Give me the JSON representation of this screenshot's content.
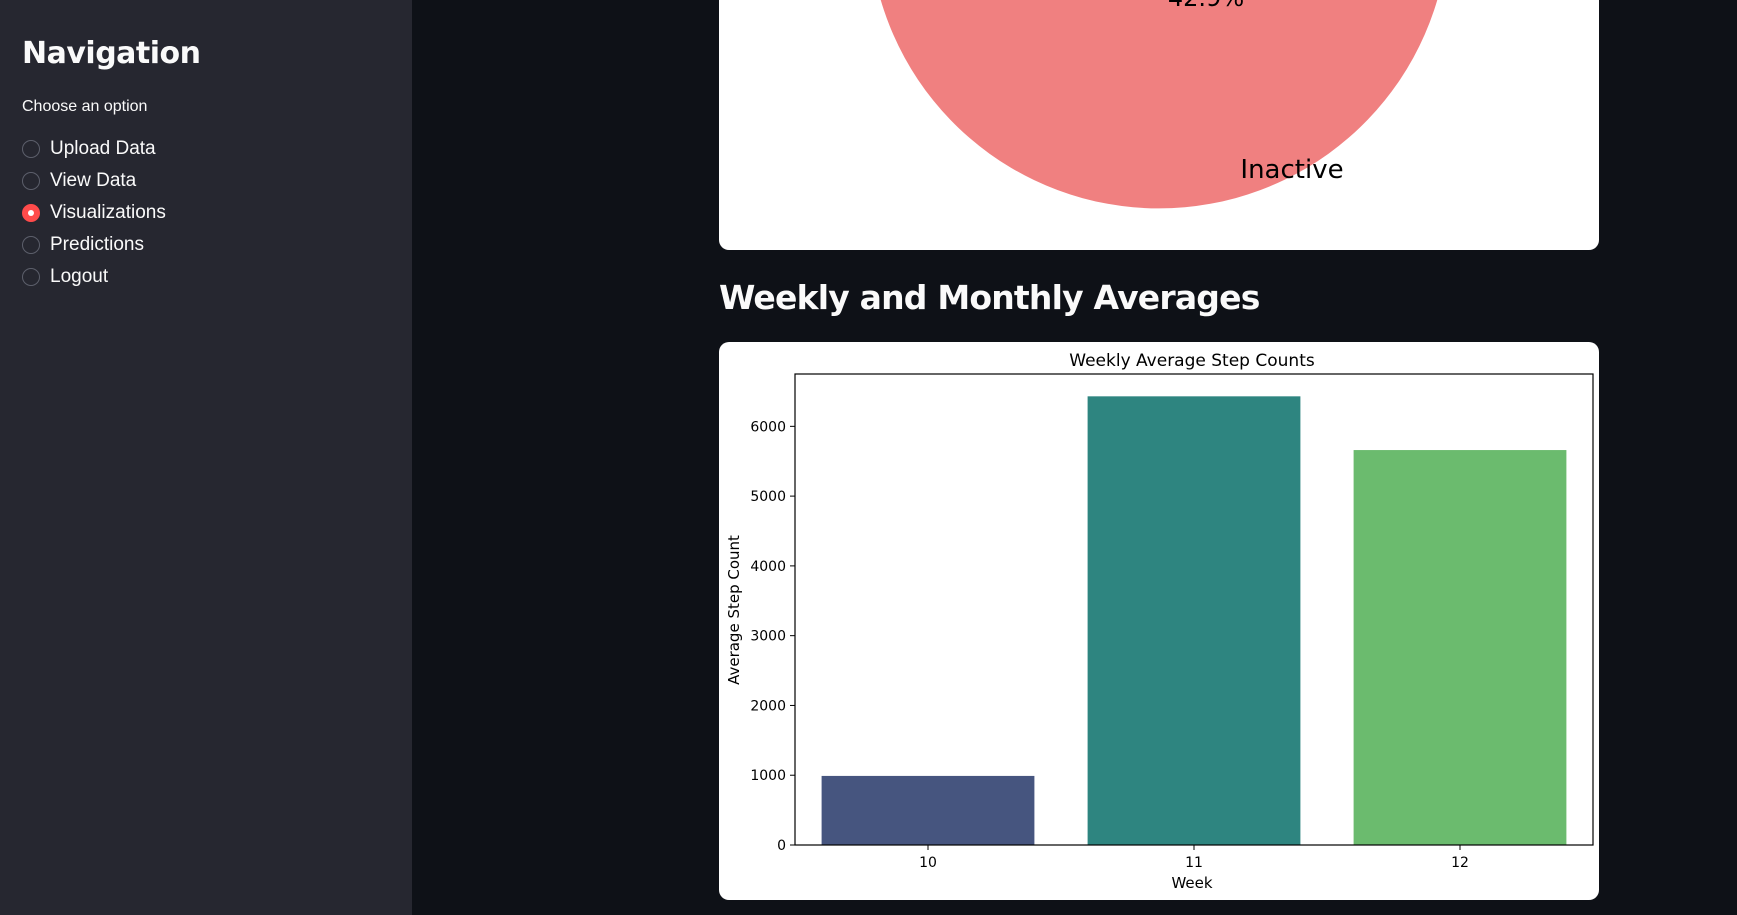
{
  "sidebar": {
    "title": "Navigation",
    "label": "Choose an option",
    "options": [
      {
        "label": "Upload Data",
        "selected": false
      },
      {
        "label": "View Data",
        "selected": false
      },
      {
        "label": "Visualizations",
        "selected": true
      },
      {
        "label": "Predictions",
        "selected": false
      },
      {
        "label": "Logout",
        "selected": false
      }
    ],
    "accent_color": "#ff4b4b"
  },
  "pie_fragment": {
    "slice_percent": "42.9%",
    "slice_label": "Inactive",
    "slice_color": "#f08080"
  },
  "main": {
    "section_title": "Weekly and Monthly Averages"
  },
  "chart_data": {
    "type": "bar",
    "title": "Weekly Average Step Counts",
    "xlabel": "Week",
    "ylabel": "Average Step Count",
    "categories": [
      "10",
      "11",
      "12"
    ],
    "values": [
      990,
      6430,
      5660
    ],
    "colors": [
      "#46557f",
      "#2e8580",
      "#6bbb6e"
    ],
    "ylim": [
      0,
      6750
    ],
    "yticks": [
      0,
      1000,
      2000,
      3000,
      4000,
      5000,
      6000
    ],
    "grid": false
  }
}
